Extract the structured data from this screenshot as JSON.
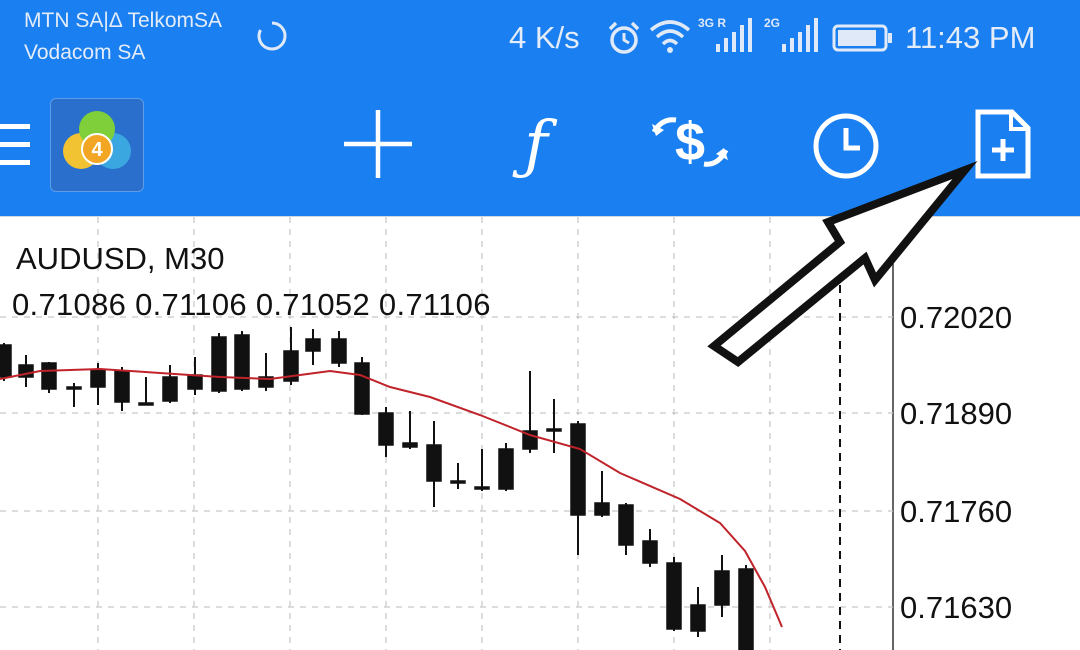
{
  "status_bar": {
    "carrier_line1": "MTN SA|Δ TelkomSA",
    "carrier_line2": "Vodacom SA",
    "net_speed": "4 K/s",
    "signal1_label": "3G R",
    "signal2_label": "2G",
    "time": "11:43 PM"
  },
  "toolbar": {
    "app_logo_badge": "4",
    "icons": [
      "menu-icon",
      "crosshair-icon",
      "function-icon",
      "trade-icon",
      "clock-icon",
      "new-order-icon"
    ]
  },
  "chart": {
    "symbol": "AUDUSD, M30",
    "ohlc": "0.71086 0.71106 0.71052 0.71106",
    "price_labels": [
      "0.72020",
      "0.71890",
      "0.71760",
      "0.71630"
    ]
  },
  "colors": {
    "toolbar_bg": "#1a7ff0",
    "ma_line": "#c0232a",
    "grid": "#c8c8c8"
  }
}
